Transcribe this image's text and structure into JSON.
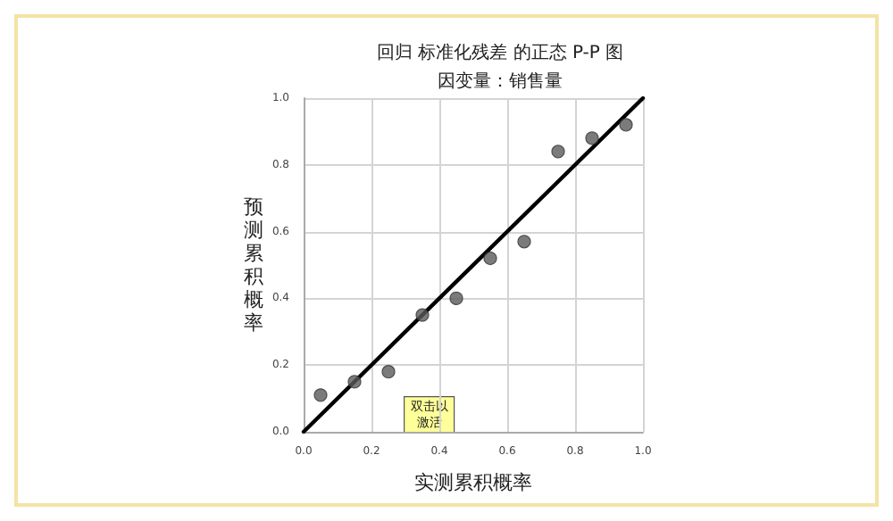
{
  "chart_data": {
    "type": "scatter",
    "title": "回归 标准化残差 的正态 P-P 图",
    "subtitle": "因变量：销售量",
    "xlabel": "实测累积概率",
    "ylabel": "预测累积概率",
    "annotations": [
      "双击以激活"
    ],
    "xlim": [
      0,
      1
    ],
    "ylim": [
      0,
      1
    ],
    "xticks": [
      {
        "value": 0,
        "label": "0.0"
      },
      0.2,
      0.4,
      0.6,
      0.8,
      {
        "value": 1,
        "label": "1.0"
      }
    ],
    "yticks": [
      {
        "value": 0,
        "label": "0.0"
      },
      0.2,
      0.4,
      0.6,
      0.8,
      {
        "value": 1,
        "label": "1.0"
      }
    ],
    "grid": true,
    "marker": "circle",
    "series": [
      {
        "color": "#5a5a5a",
        "x": [
          0.05,
          0.15,
          0.25,
          0.35,
          0.45,
          0.55,
          0.65,
          0.75,
          0.85,
          0.95
        ],
        "values": [
          0.11,
          0.15,
          0.18,
          0.35,
          0.4,
          0.52,
          0.57,
          0.84,
          0.88,
          0.92
        ]
      },
      {
        "type": "line",
        "color": "#000000",
        "line_style": "solid",
        "marker": "none",
        "x": [
          0,
          1
        ],
        "values": [
          0,
          1
        ]
      }
    ]
  }
}
